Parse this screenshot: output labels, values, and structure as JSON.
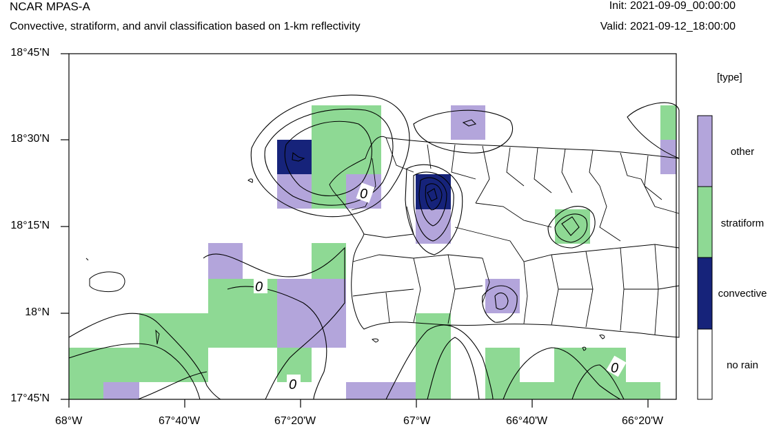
{
  "header": {
    "model": "NCAR MPAS-A",
    "description": "Convective, stratiform, and anvil classification based on 1-km reflectivity",
    "init": "Init: 2021-09-09_00:00:00",
    "valid": "Valid: 2021-09-12_18:00:00"
  },
  "map": {
    "lon_range": [
      -68.0,
      -66.25
    ],
    "lat_range": [
      17.75,
      18.75
    ],
    "x_ticks": [
      "68°W",
      "67°40'W",
      "67°20'W",
      "67°W",
      "66°40'W",
      "66°20'W"
    ],
    "y_ticks": [
      "18°45'N",
      "18°30'N",
      "18°15'N",
      "18°N",
      "17°45'N"
    ],
    "contour_labels": [
      "0",
      "0",
      "0",
      "0"
    ]
  },
  "legend": {
    "title": "[type]",
    "items": [
      {
        "label": "other",
        "color": "#b3a5db"
      },
      {
        "label": "stratiform",
        "color": "#8ed994"
      },
      {
        "label": "convective",
        "color": "#16237a"
      },
      {
        "label": "no rain",
        "color": "#ffffff"
      }
    ]
  }
}
